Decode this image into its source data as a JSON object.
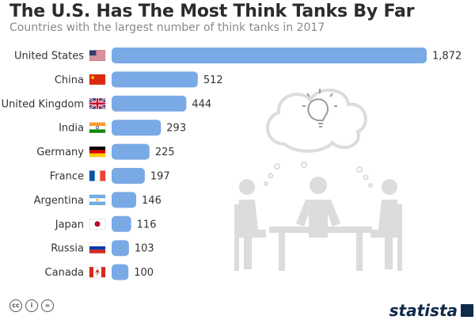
{
  "header": {
    "title": "The U.S. Has The Most Think Tanks By Far",
    "subtitle": "Countries with the largest number of think tanks in 2017"
  },
  "footer": {
    "cc_icons": [
      "cc-icon",
      "by-icon",
      "nd-icon"
    ],
    "brand": "statista"
  },
  "colors": {
    "bar": "#7aaae6",
    "text": "#333333",
    "illustration": "#dcdcdc"
  },
  "chart_data": {
    "type": "bar",
    "orientation": "horizontal",
    "title": "The U.S. Has The Most Think Tanks By Far",
    "subtitle": "Countries with the largest number of think tanks in 2017",
    "categories": [
      "United States",
      "China",
      "United Kingdom",
      "India",
      "Germany",
      "France",
      "Argentina",
      "Japan",
      "Russia",
      "Canada"
    ],
    "values": [
      1872,
      512,
      444,
      293,
      225,
      197,
      146,
      116,
      103,
      100
    ],
    "value_labels": [
      "1,872",
      "512",
      "444",
      "293",
      "225",
      "197",
      "146",
      "116",
      "103",
      "100"
    ],
    "flags": [
      "flag-us-icon",
      "flag-cn-icon",
      "flag-uk-icon",
      "flag-in-icon",
      "flag-de-icon",
      "flag-fr-icon",
      "flag-ar-icon",
      "flag-jp-icon",
      "flag-ru-icon",
      "flag-ca-icon"
    ],
    "xlim": [
      0,
      1872
    ],
    "grid": false,
    "legend": "none"
  }
}
